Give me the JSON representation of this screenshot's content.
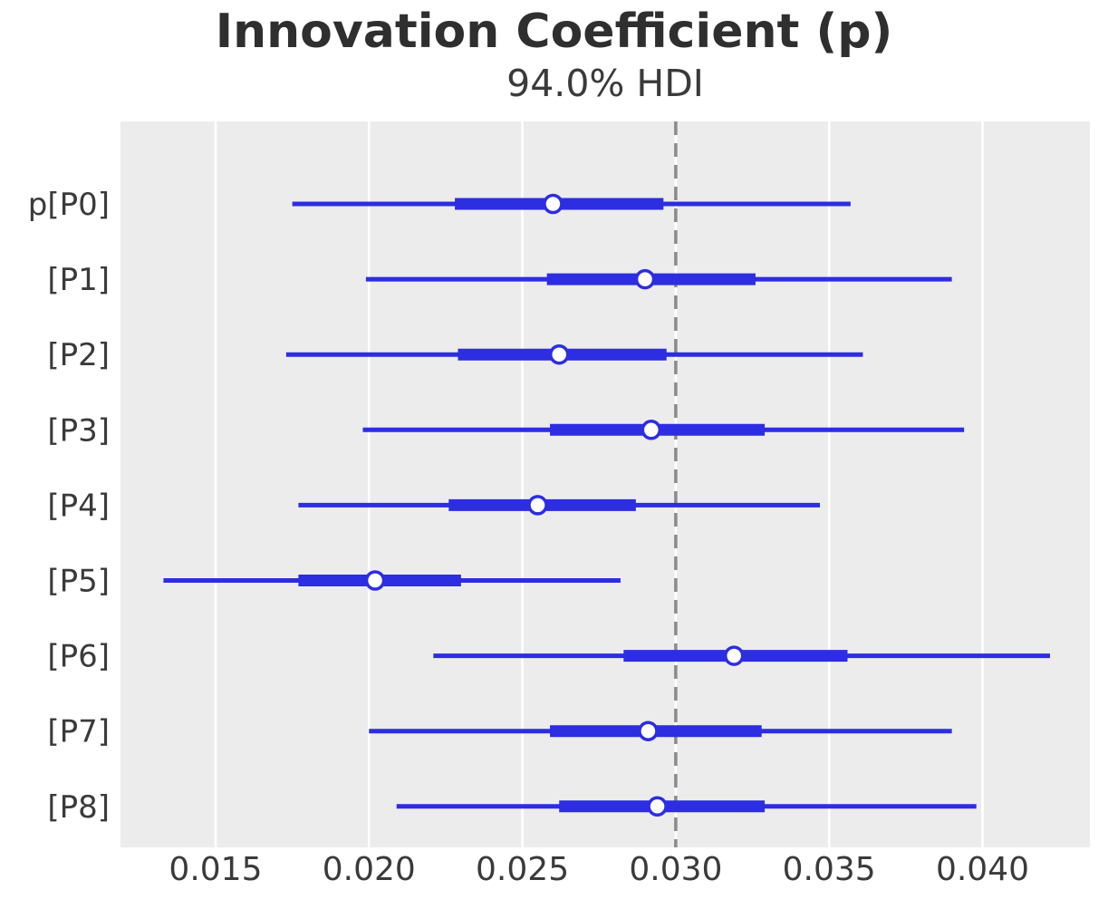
{
  "chart_data": {
    "type": "scatter",
    "variant": "forest_plot_hdi",
    "title": "Innovation Coefficient (p)",
    "subtitle": "94.0% HDI",
    "hdi_probability": "94.0%",
    "rows": [
      {
        "label": "p[P0]",
        "hdi_lower": 0.0175,
        "hdi_upper": 0.0357,
        "band_lower": 0.0228,
        "band_upper": 0.0296,
        "point": 0.026
      },
      {
        "label": "[P1]",
        "hdi_lower": 0.0199,
        "hdi_upper": 0.039,
        "band_lower": 0.0258,
        "band_upper": 0.0326,
        "point": 0.029
      },
      {
        "label": "[P2]",
        "hdi_lower": 0.0173,
        "hdi_upper": 0.0361,
        "band_lower": 0.0229,
        "band_upper": 0.0297,
        "point": 0.0262
      },
      {
        "label": "[P3]",
        "hdi_lower": 0.0198,
        "hdi_upper": 0.0394,
        "band_lower": 0.0259,
        "band_upper": 0.0329,
        "point": 0.0292
      },
      {
        "label": "[P4]",
        "hdi_lower": 0.0177,
        "hdi_upper": 0.0347,
        "band_lower": 0.0226,
        "band_upper": 0.0287,
        "point": 0.0255
      },
      {
        "label": "[P5]",
        "hdi_lower": 0.0133,
        "hdi_upper": 0.0282,
        "band_lower": 0.0177,
        "band_upper": 0.023,
        "point": 0.0202
      },
      {
        "label": "[P6]",
        "hdi_lower": 0.0221,
        "hdi_upper": 0.0422,
        "band_lower": 0.0283,
        "band_upper": 0.0356,
        "point": 0.0319
      },
      {
        "label": "[P7]",
        "hdi_lower": 0.02,
        "hdi_upper": 0.039,
        "band_lower": 0.0259,
        "band_upper": 0.0328,
        "point": 0.0291
      },
      {
        "label": "[P8]",
        "hdi_lower": 0.0209,
        "hdi_upper": 0.0398,
        "band_lower": 0.0262,
        "band_upper": 0.0329,
        "point": 0.0294
      }
    ],
    "reference_line_x": 0.03,
    "x_ticks": [
      0.015,
      0.02,
      0.025,
      0.03,
      0.035,
      0.04
    ],
    "x_tick_labels": [
      "0.015",
      "0.020",
      "0.025",
      "0.030",
      "0.035",
      "0.040"
    ],
    "xlim": [
      0.0119,
      0.0435
    ],
    "xlabel": "",
    "ylabel": "",
    "grid": "vertical-white-gridlines-on-gray",
    "legend": "none",
    "colors": {
      "interval": "#2d2de1",
      "marker_fill": "#ffffff",
      "plot_background": "#ececec",
      "gridline": "#ffffff",
      "reference_line": "#8a8a8a",
      "text": "#3a3a3a",
      "title_text": "#2f2f2f"
    }
  }
}
